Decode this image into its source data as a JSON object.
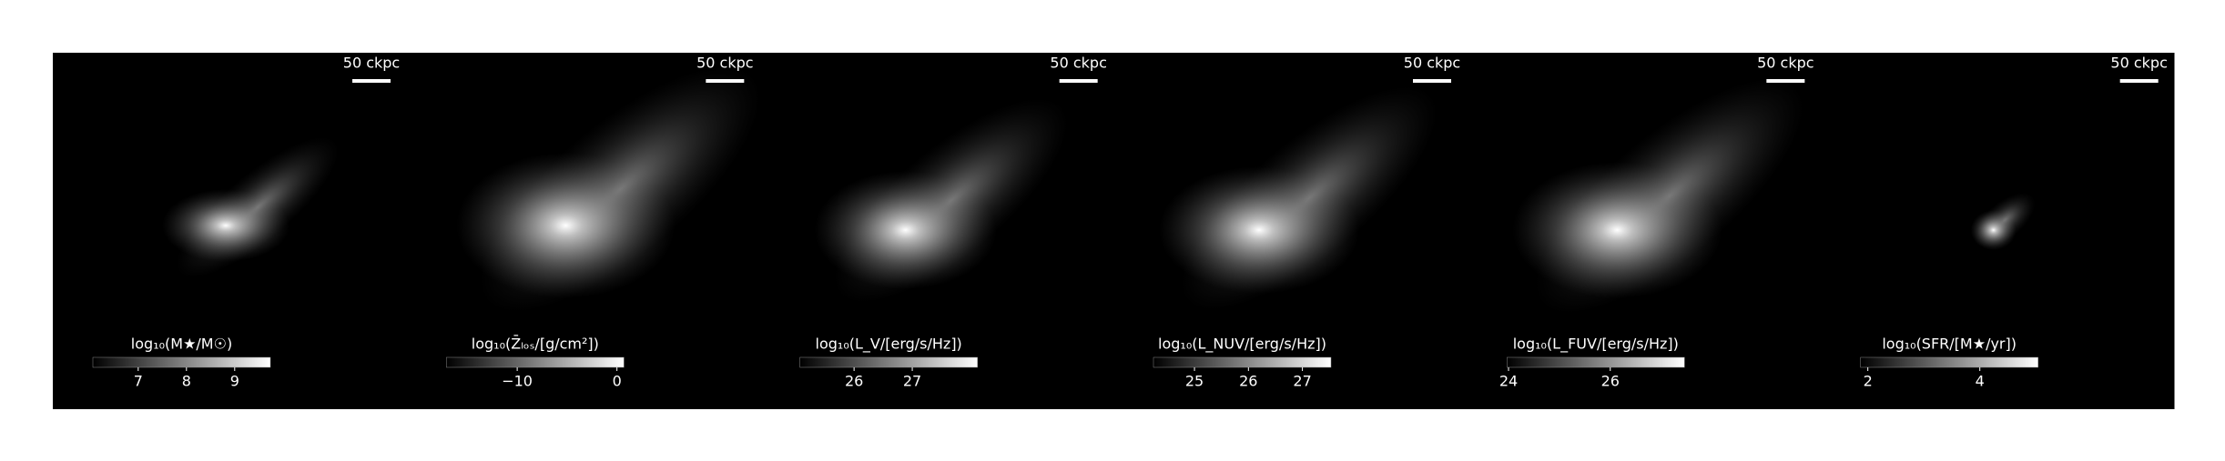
{
  "chart_data": [
    {
      "type": "image",
      "scalebar_label": "50 ckpc",
      "colorbar_label": "log₁₀(M★/M☉)",
      "clim": [
        6.06,
        9.74
      ],
      "cticks": [
        7,
        8,
        9
      ]
    },
    {
      "type": "image",
      "scalebar_label": "50 ckpc",
      "colorbar_label": "log₁₀(Z̄ₗₒₛ/[g/cm²])",
      "clim": [
        -17.1,
        0.7
      ],
      "cticks": [
        {
          "value": -10,
          "label": "−10"
        },
        0
      ]
    },
    {
      "type": "image",
      "scalebar_label": "50 ckpc",
      "colorbar_label": "log₁₀(L_V/[erg/s/Hz])",
      "clim": [
        25.07,
        28.12
      ],
      "cticks": [
        26,
        27
      ]
    },
    {
      "type": "image",
      "scalebar_label": "50 ckpc",
      "colorbar_label": "log₁₀(L_NUV/[erg/s/Hz])",
      "clim": [
        24.24,
        27.53
      ],
      "cticks": [
        25,
        26,
        27
      ]
    },
    {
      "type": "image",
      "scalebar_label": "50 ckpc",
      "colorbar_label": "log₁₀(L_FUV/[erg/s/Hz])",
      "clim": [
        23.97,
        27.46
      ],
      "cticks": [
        24,
        26
      ]
    },
    {
      "type": "image",
      "scalebar_label": "50 ckpc",
      "colorbar_label": "log₁₀(SFR/[M★/yr])",
      "clim": [
        1.87,
        5.04
      ],
      "cticks": [
        2,
        4
      ]
    }
  ]
}
